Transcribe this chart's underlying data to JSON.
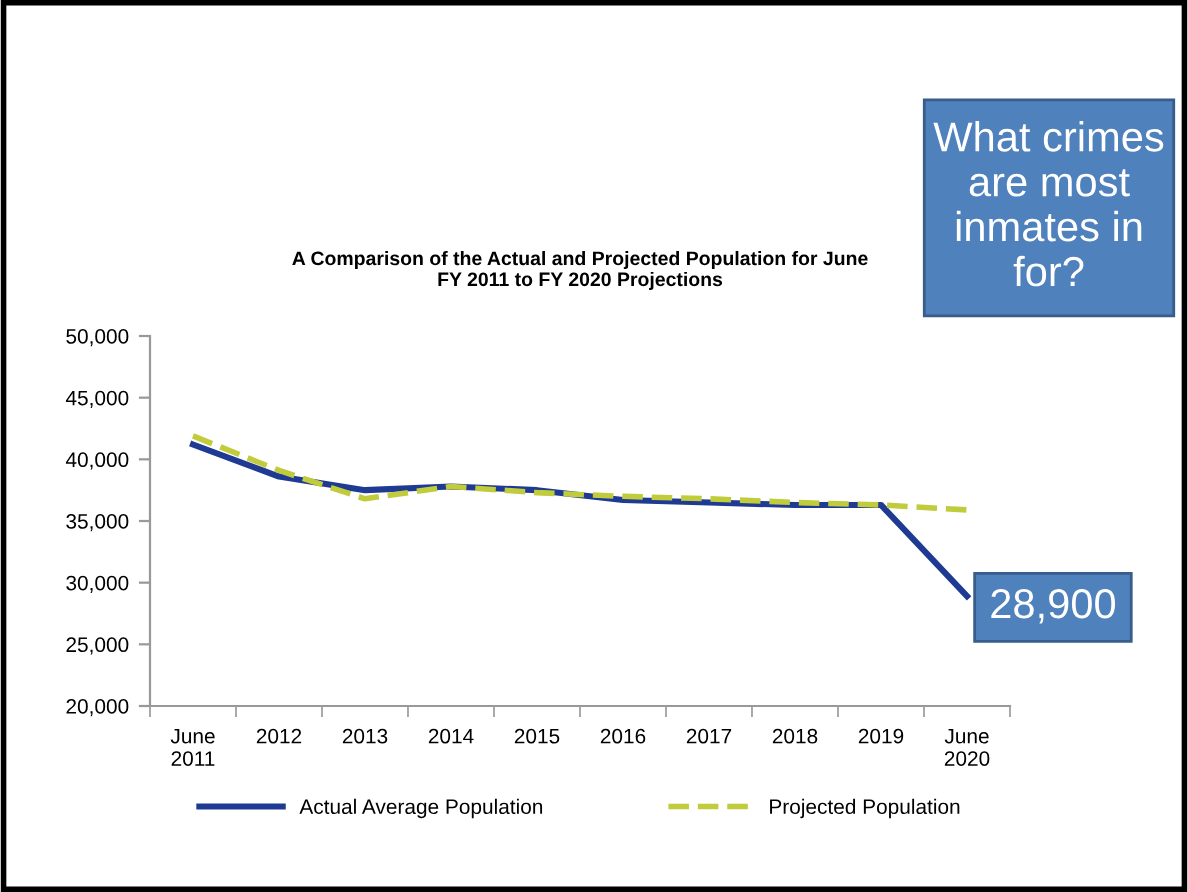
{
  "chart_data": {
    "type": "line",
    "title": "A Comparison of the Actual and Projected Population for June\nFY 2011 to FY 2020 Projections",
    "categories": [
      "June\n2011",
      "2012",
      "2013",
      "2014",
      "2015",
      "2016",
      "2017",
      "2018",
      "2019",
      "June\n2020"
    ],
    "series": [
      {
        "name": "Actual Average Population",
        "color": "#1f3a93",
        "line_style": "solid",
        "values": [
          41200,
          38600,
          37500,
          37800,
          37500,
          36700,
          36500,
          36300,
          36300,
          28900
        ],
        "value_labels": [
          null,
          null,
          null,
          null,
          null,
          null,
          null,
          null,
          null,
          "28,900"
        ]
      },
      {
        "name": "Projected Population",
        "color": "#c0cc3c",
        "line_style": "dashed",
        "values": [
          41900,
          39100,
          36800,
          37800,
          37300,
          37000,
          36800,
          36500,
          36300,
          35900
        ]
      }
    ],
    "ylim": [
      20000,
      50000
    ],
    "yticks": [
      {
        "value": 20000,
        "label": "20,000"
      },
      {
        "value": 25000,
        "label": "25,000"
      },
      {
        "value": 30000,
        "label": "30,000"
      },
      {
        "value": 35000,
        "label": "35,000"
      },
      {
        "value": 40000,
        "label": "40,000"
      },
      {
        "value": 45000,
        "label": "45,000"
      },
      {
        "value": 50000,
        "label": "50,000"
      }
    ],
    "grid": false,
    "legend": "bottom",
    "marker": "none",
    "annotations": [
      "What crimes are most inmates in for?"
    ]
  }
}
